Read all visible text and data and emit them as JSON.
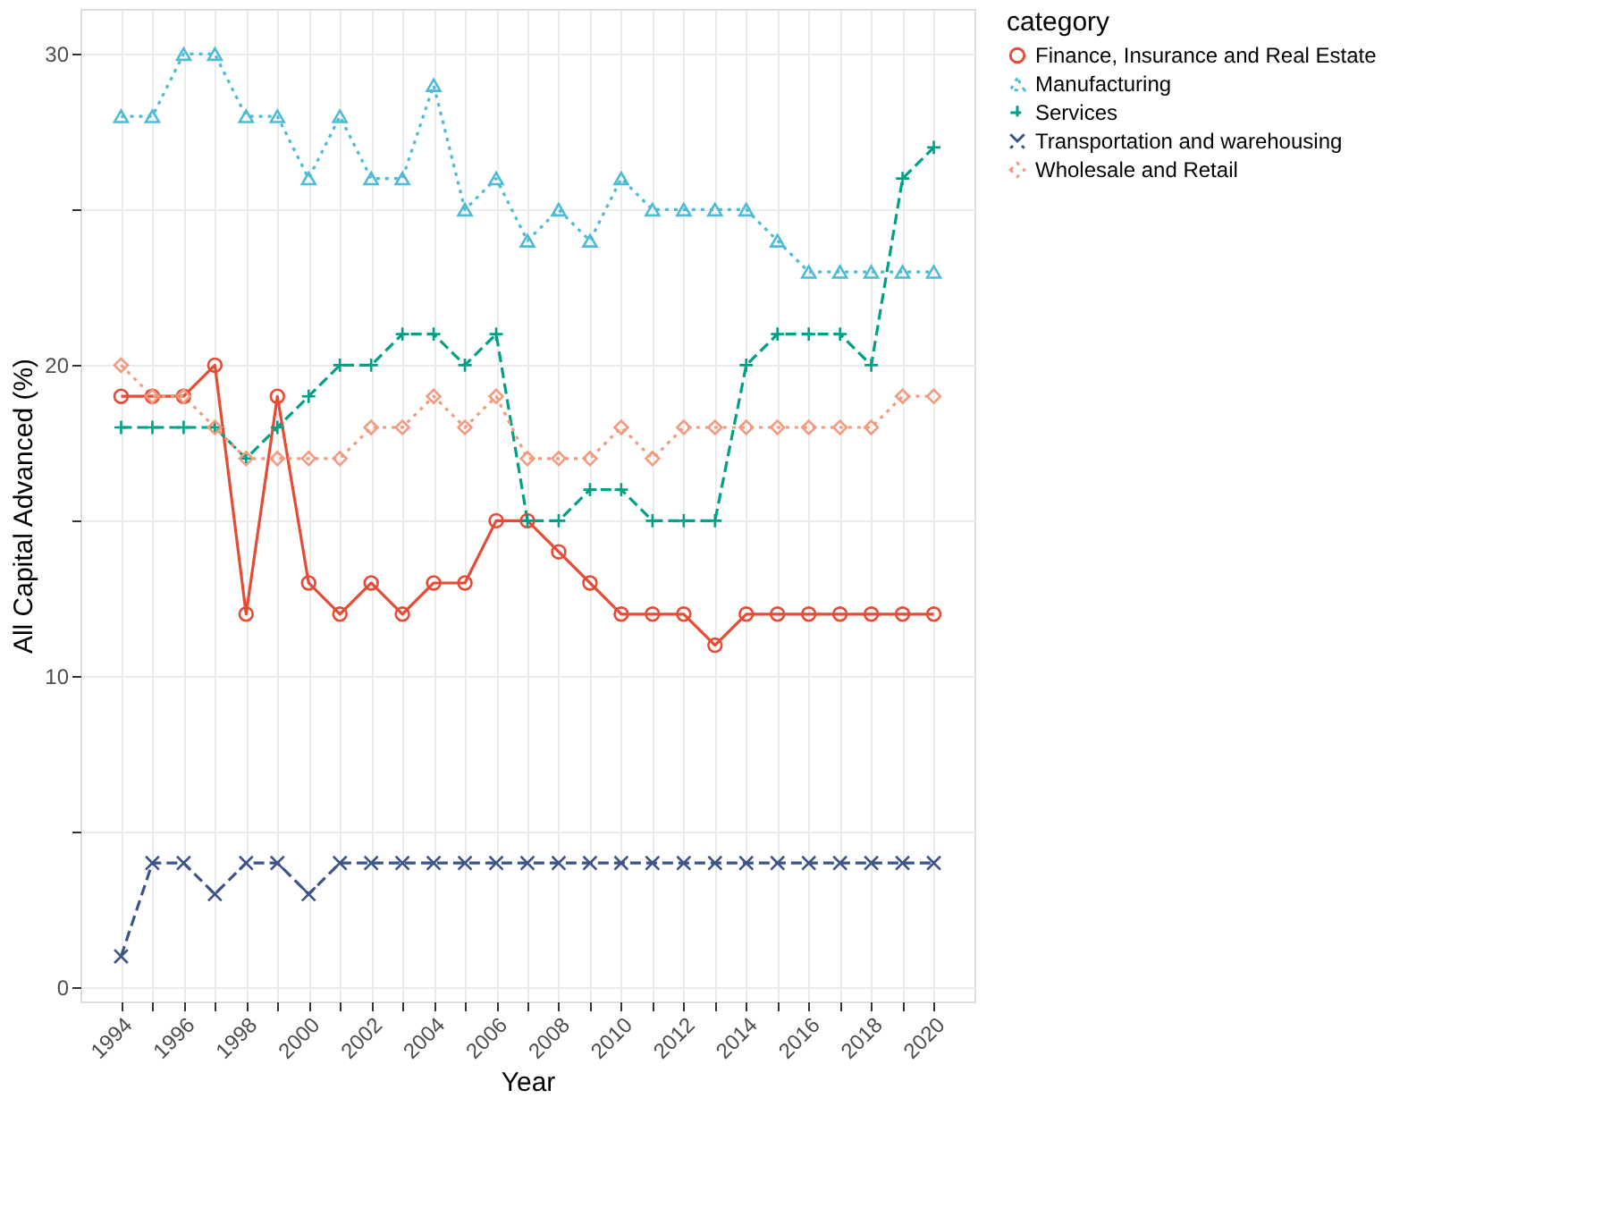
{
  "chart_data": {
    "type": "line",
    "xlabel": "Year",
    "ylabel": "All Capital Advanced (%)",
    "legend_title": "category",
    "legend": "right",
    "grid": true,
    "x": [
      1994,
      1995,
      1996,
      1997,
      1998,
      1999,
      2000,
      2001,
      2002,
      2003,
      2004,
      2005,
      2006,
      2007,
      2008,
      2009,
      2010,
      2011,
      2012,
      2013,
      2014,
      2015,
      2016,
      2017,
      2018,
      2019,
      2020
    ],
    "xlim": [
      1992.7,
      2021.3
    ],
    "xticks": [
      1994,
      {
        "value": 1995,
        "label": null
      },
      1996,
      {
        "value": 1997,
        "label": null
      },
      1998,
      {
        "value": 1999,
        "label": null
      },
      2000,
      {
        "value": 2001,
        "label": null
      },
      2002,
      {
        "value": 2003,
        "label": null
      },
      2004,
      {
        "value": 2005,
        "label": null
      },
      2006,
      {
        "value": 2007,
        "label": null
      },
      2008,
      {
        "value": 2009,
        "label": null
      },
      2010,
      {
        "value": 2011,
        "label": null
      },
      2012,
      {
        "value": 2013,
        "label": null
      },
      2014,
      {
        "value": 2015,
        "label": null
      },
      2016,
      {
        "value": 2017,
        "label": null
      },
      2018,
      {
        "value": 2019,
        "label": null
      },
      2020
    ],
    "ylim": [
      -0.45,
      31.45
    ],
    "yticks": [
      0,
      {
        "value": 5,
        "label": null
      },
      10,
      {
        "value": 15,
        "label": null
      },
      20,
      {
        "value": 25,
        "label": null
      },
      30
    ],
    "series": [
      {
        "name": "Finance, Insurance and Real Estate",
        "color": "#e64b35",
        "marker": "circle",
        "line_style": "solid",
        "values": [
          19,
          19,
          19,
          20,
          12,
          19,
          13,
          12,
          13,
          12,
          13,
          13,
          15,
          15,
          14,
          13,
          12,
          12,
          12,
          11,
          12,
          12,
          12,
          12,
          12,
          12,
          12
        ]
      },
      {
        "name": "Manufacturing",
        "color": "#4dbbd5",
        "marker": "triangle",
        "line_style": "dotted",
        "values": [
          28,
          28,
          30,
          30,
          28,
          28,
          26,
          28,
          26,
          26,
          29,
          25,
          26,
          24,
          25,
          24,
          26,
          25,
          25,
          25,
          25,
          24,
          23,
          23,
          23,
          23,
          23
        ]
      },
      {
        "name": "Services",
        "color": "#00a087",
        "marker": "cross",
        "line_style": "dashed",
        "values": [
          18,
          18,
          18,
          18,
          17,
          18,
          19,
          20,
          20,
          21,
          21,
          20,
          21,
          15,
          15,
          16,
          16,
          15,
          15,
          15,
          20,
          21,
          21,
          21,
          20,
          26,
          27
        ]
      },
      {
        "name": "Transportation and warehousing",
        "color": "#3c5488",
        "marker": "x",
        "line_style": "dashed",
        "values": [
          1,
          4,
          4,
          3,
          4,
          4,
          3,
          4,
          4,
          4,
          4,
          4,
          4,
          4,
          4,
          4,
          4,
          4,
          4,
          4,
          4,
          4,
          4,
          4,
          4,
          4,
          4
        ]
      },
      {
        "name": "Wholesale and Retail",
        "color": "#f39b7f",
        "marker": "diamond",
        "line_style": "dotted",
        "values": [
          20,
          19,
          19,
          18,
          17,
          17,
          17,
          17,
          18,
          18,
          19,
          18,
          19,
          17,
          17,
          17,
          18,
          17,
          18,
          18,
          18,
          18,
          18,
          18,
          18,
          19,
          19
        ]
      }
    ]
  }
}
